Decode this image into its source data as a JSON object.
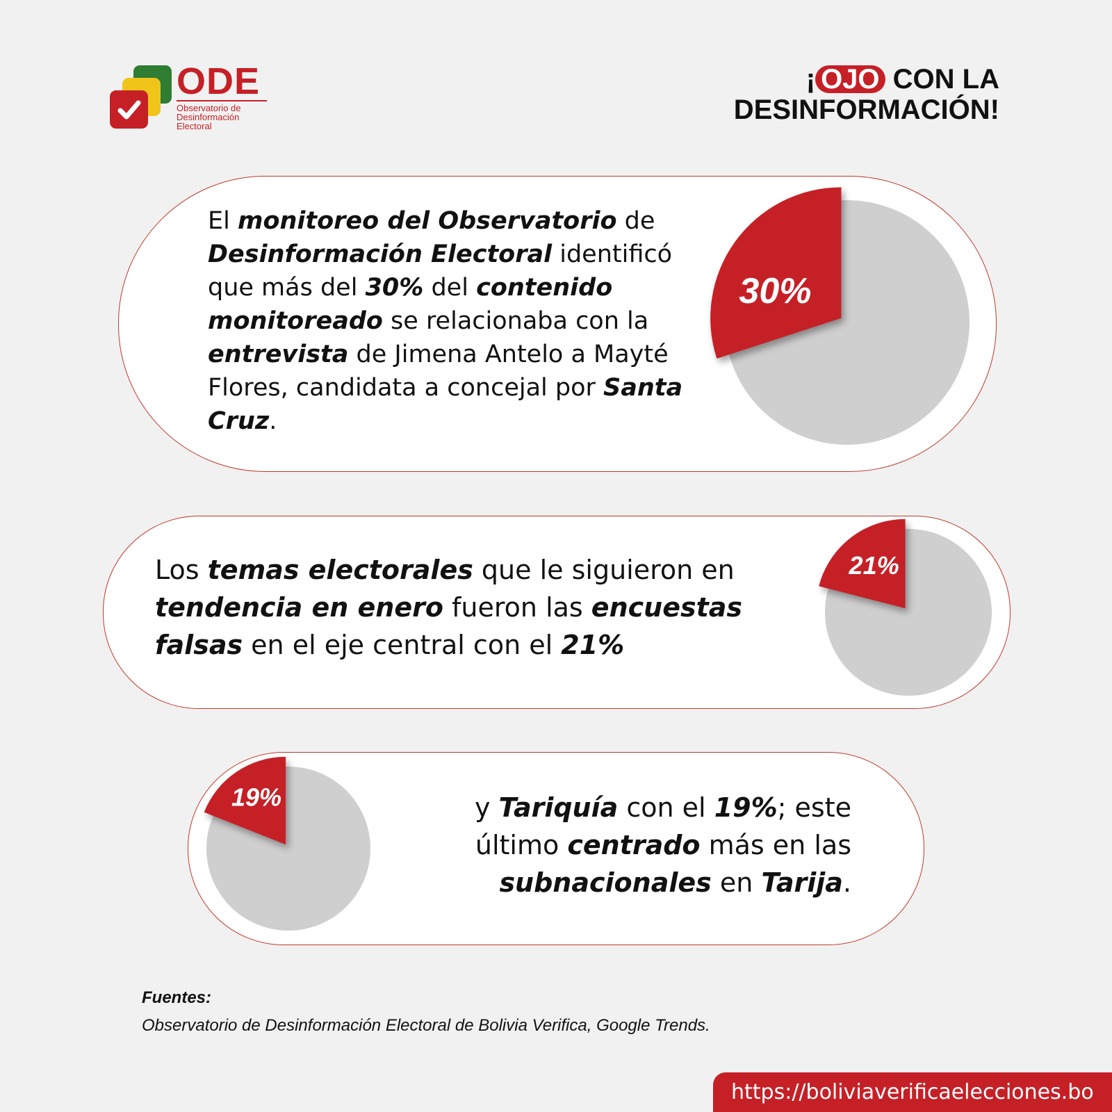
{
  "logo": {
    "name": "ODE",
    "subtitle": "Observatorio de Desinformación Electoral"
  },
  "headline": {
    "prefix": "¡",
    "highlight": "OJO",
    "line1_rest": "CON LA",
    "line2": "DESINFORMACIÓN!"
  },
  "cards": [
    {
      "parts": [
        {
          "t": "El "
        },
        {
          "t": "monitoreo del Observatorio",
          "b": true
        },
        {
          "t": " de "
        },
        {
          "t": "Desinformación Electoral",
          "b": true
        },
        {
          "t": " identificó que más del "
        },
        {
          "t": "30%",
          "b": true
        },
        {
          "t": " del "
        },
        {
          "t": "contenido monitoreado",
          "b": true
        },
        {
          "t": " se relacionaba con la "
        },
        {
          "t": "entrevista",
          "b": true
        },
        {
          "t": " de Jimena Antelo a Mayté Flores, candidata a concejal por "
        },
        {
          "t": "Santa Cruz",
          "b": true
        },
        {
          "t": "."
        }
      ]
    },
    {
      "parts": [
        {
          "t": "Los "
        },
        {
          "t": "temas electorales",
          "b": true
        },
        {
          "t": " que le siguieron en "
        },
        {
          "t": "tendencia en enero",
          "b": true
        },
        {
          "t": " fueron las "
        },
        {
          "t": "encuestas falsas",
          "b": true
        },
        {
          "t": " en el eje central con el "
        },
        {
          "t": "21%",
          "b": true
        }
      ]
    },
    {
      "parts": [
        {
          "t": "y "
        },
        {
          "t": "Tariquía",
          "b": true
        },
        {
          "t": " con el "
        },
        {
          "t": "19%",
          "b": true
        },
        {
          "t": "; este último "
        },
        {
          "t": "centrado",
          "b": true
        },
        {
          "t": " más en las "
        },
        {
          "t": "subnacionales",
          "b": true
        },
        {
          "t": " en "
        },
        {
          "t": "Tarija",
          "b": true
        },
        {
          "t": "."
        }
      ]
    }
  ],
  "chart_data": [
    {
      "type": "pie",
      "values": [
        30,
        70
      ],
      "labels": [
        "30%",
        ""
      ],
      "title": ""
    },
    {
      "type": "pie",
      "values": [
        21,
        79
      ],
      "labels": [
        "21%",
        ""
      ],
      "title": ""
    },
    {
      "type": "pie",
      "values": [
        19,
        81
      ],
      "labels": [
        "19%",
        ""
      ],
      "title": ""
    }
  ],
  "sources": {
    "label": "Fuentes:",
    "text": "Observatorio de Desinformación Electoral de Bolivia Verifica, Google Trends."
  },
  "url": "https://boliviaverificaelecciones.bo",
  "colors": {
    "accent": "#c62027",
    "pie_rest": "#cfcfcf",
    "background": "#f1f1f1"
  }
}
